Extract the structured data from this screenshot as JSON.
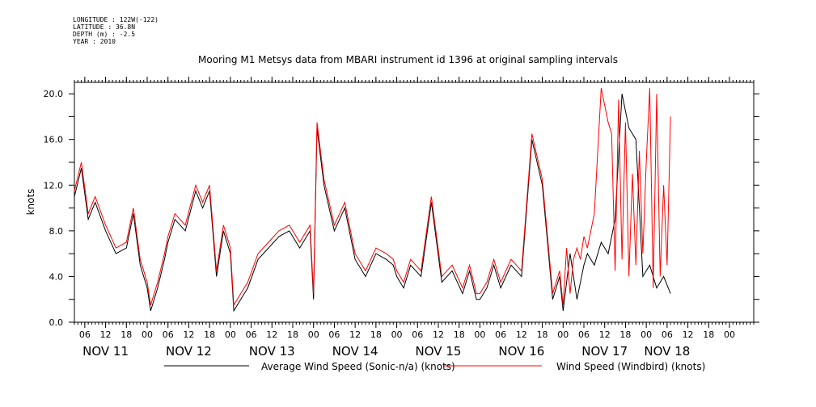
{
  "metadata": {
    "lines": [
      "LONGITUDE : 122W(-122)",
      "LATITUDE : 36.8N",
      "DEPTH (m) : -2.5",
      "YEAR : 2010"
    ]
  },
  "colors": {
    "series1": "#000000",
    "series2": "#ff0000",
    "axis": "#000000"
  },
  "chart_data": {
    "type": "line",
    "title": "Mooring M1 Metsys data from MBARI instrument id 1396 at original sampling intervals",
    "xlabel": "",
    "ylabel": "knots",
    "ylim": [
      0,
      21
    ],
    "xlim": [
      "2010-11-10T03:00",
      "2010-11-18T07:00"
    ],
    "yticks": [
      "0.0",
      "4.0",
      "8.0",
      "12.0",
      "16.0",
      "20.0"
    ],
    "xtick_hours": [
      "06",
      "12",
      "18",
      "00",
      "06",
      "12",
      "18",
      "00",
      "06",
      "12",
      "18",
      "00",
      "06",
      "12",
      "18",
      "00",
      "06",
      "12",
      "18",
      "00",
      "06",
      "12",
      "18",
      "00",
      "06",
      "12",
      "18",
      "00",
      "06",
      "12",
      "18",
      "00"
    ],
    "xtick_start": "2010-11-10T06:00",
    "date_labels": [
      {
        "label": "NOV 11",
        "at": "2010-11-10T12:00"
      },
      {
        "label": "NOV 12",
        "at": "2010-11-11T12:00"
      },
      {
        "label": "NOV 13",
        "at": "2010-11-12T12:00"
      },
      {
        "label": "NOV 14",
        "at": "2010-11-13T12:00"
      },
      {
        "label": "NOV 15",
        "at": "2010-11-14T12:00"
      },
      {
        "label": "NOV 16",
        "at": "2010-11-15T12:00"
      },
      {
        "label": "NOV 17",
        "at": "2010-11-16T12:00"
      },
      {
        "label": "NOV 18",
        "at": "2010-11-17T06:00"
      }
    ],
    "series": [
      {
        "name": "Average Wind Speed (Sonic-n/a) (knots)",
        "x": [
          "2010-11-10T03:00",
          "2010-11-10T05:00",
          "2010-11-10T07:00",
          "2010-11-10T09:00",
          "2010-11-10T12:00",
          "2010-11-10T15:00",
          "2010-11-10T18:00",
          "2010-11-10T20:00",
          "2010-11-10T22:00",
          "2010-11-11T00:00",
          "2010-11-11T01:00",
          "2010-11-11T03:00",
          "2010-11-11T05:00",
          "2010-11-11T06:00",
          "2010-11-11T08:00",
          "2010-11-11T11:00",
          "2010-11-11T14:00",
          "2010-11-11T16:00",
          "2010-11-11T18:00",
          "2010-11-11T20:00",
          "2010-11-11T22:00",
          "2010-11-12T00:00",
          "2010-11-12T01:00",
          "2010-11-12T03:00",
          "2010-11-12T05:00",
          "2010-11-12T08:00",
          "2010-11-12T11:00",
          "2010-11-12T14:00",
          "2010-11-12T17:00",
          "2010-11-12T20:00",
          "2010-11-12T23:00",
          "2010-11-13T00:00",
          "2010-11-13T01:00",
          "2010-11-13T03:00",
          "2010-11-13T06:00",
          "2010-11-13T09:00",
          "2010-11-13T12:00",
          "2010-11-13T15:00",
          "2010-11-13T18:00",
          "2010-11-13T21:00",
          "2010-11-13T23:00",
          "2010-11-14T00:00",
          "2010-11-14T02:00",
          "2010-11-14T04:00",
          "2010-11-14T07:00",
          "2010-11-14T10:00",
          "2010-11-14T13:00",
          "2010-11-14T16:00",
          "2010-11-14T19:00",
          "2010-11-14T21:00",
          "2010-11-14T23:00",
          "2010-11-15T00:00",
          "2010-11-15T02:00",
          "2010-11-15T04:00",
          "2010-11-15T06:00",
          "2010-11-15T09:00",
          "2010-11-15T12:00",
          "2010-11-15T15:00",
          "2010-11-15T18:00",
          "2010-11-15T21:00",
          "2010-11-15T23:00",
          "2010-11-16T00:00",
          "2010-11-16T02:00",
          "2010-11-16T04:00",
          "2010-11-16T06:00",
          "2010-11-16T07:00",
          "2010-11-16T09:00",
          "2010-11-16T11:00",
          "2010-11-16T13:00",
          "2010-11-16T15:00",
          "2010-11-16T17:00",
          "2010-11-16T19:00",
          "2010-11-16T21:00",
          "2010-11-16T23:00",
          "2010-11-17T01:00",
          "2010-11-17T03:00",
          "2010-11-17T05:00",
          "2010-11-17T07:00"
        ],
        "y": [
          11,
          13.5,
          9,
          10.5,
          8,
          6,
          6.5,
          9.5,
          5,
          3,
          1,
          3,
          5.5,
          7,
          9,
          8,
          11.5,
          10,
          11.5,
          4,
          8,
          6,
          1,
          2,
          3,
          5.5,
          6.5,
          7.5,
          8,
          6.5,
          8,
          2,
          17,
          12,
          8,
          10,
          5.5,
          4,
          6,
          5.5,
          5,
          4,
          3,
          5,
          4,
          10.5,
          3.5,
          4.5,
          2.5,
          4.5,
          2,
          2,
          3,
          5,
          3,
          5,
          4,
          16,
          12,
          2,
          4,
          1,
          6,
          2,
          5,
          6,
          5,
          7,
          6,
          9,
          20,
          17,
          16,
          4,
          5,
          3,
          4,
          2.5
        ]
      },
      {
        "name": "Wind Speed (Windbird) (knots)",
        "x": [
          "2010-11-10T03:00",
          "2010-11-10T05:00",
          "2010-11-10T07:00",
          "2010-11-10T09:00",
          "2010-11-10T12:00",
          "2010-11-10T15:00",
          "2010-11-10T18:00",
          "2010-11-10T20:00",
          "2010-11-10T22:00",
          "2010-11-11T00:00",
          "2010-11-11T01:00",
          "2010-11-11T03:00",
          "2010-11-11T05:00",
          "2010-11-11T06:00",
          "2010-11-11T08:00",
          "2010-11-11T11:00",
          "2010-11-11T14:00",
          "2010-11-11T16:00",
          "2010-11-11T18:00",
          "2010-11-11T20:00",
          "2010-11-11T22:00",
          "2010-11-12T00:00",
          "2010-11-12T01:00",
          "2010-11-12T03:00",
          "2010-11-12T05:00",
          "2010-11-12T08:00",
          "2010-11-12T11:00",
          "2010-11-12T14:00",
          "2010-11-12T17:00",
          "2010-11-12T20:00",
          "2010-11-12T23:00",
          "2010-11-13T00:00",
          "2010-11-13T01:00",
          "2010-11-13T03:00",
          "2010-11-13T06:00",
          "2010-11-13T09:00",
          "2010-11-13T12:00",
          "2010-11-13T15:00",
          "2010-11-13T18:00",
          "2010-11-13T21:00",
          "2010-11-13T23:00",
          "2010-11-14T00:00",
          "2010-11-14T02:00",
          "2010-11-14T04:00",
          "2010-11-14T07:00",
          "2010-11-14T10:00",
          "2010-11-14T13:00",
          "2010-11-14T16:00",
          "2010-11-14T19:00",
          "2010-11-14T21:00",
          "2010-11-14T23:00",
          "2010-11-15T00:00",
          "2010-11-15T02:00",
          "2010-11-15T04:00",
          "2010-11-15T06:00",
          "2010-11-15T09:00",
          "2010-11-15T12:00",
          "2010-11-15T15:00",
          "2010-11-15T18:00",
          "2010-11-15T21:00",
          "2010-11-15T23:00",
          "2010-11-16T00:00",
          "2010-11-16T01:00",
          "2010-11-16T02:00",
          "2010-11-16T03:00",
          "2010-11-16T04:00",
          "2010-11-16T05:00",
          "2010-11-16T06:00",
          "2010-11-16T07:00",
          "2010-11-16T09:00",
          "2010-11-16T11:00",
          "2010-11-16T13:00",
          "2010-11-16T14:00",
          "2010-11-16T15:00",
          "2010-11-16T16:00",
          "2010-11-16T17:00",
          "2010-11-16T18:00",
          "2010-11-16T19:00",
          "2010-11-16T20:00",
          "2010-11-16T21:00",
          "2010-11-16T22:00",
          "2010-11-16T23:00",
          "2010-11-17T00:00",
          "2010-11-17T01:00",
          "2010-11-17T02:00",
          "2010-11-17T03:00",
          "2010-11-17T04:00",
          "2010-11-17T05:00",
          "2010-11-17T06:00",
          "2010-11-17T07:00"
        ],
        "y": [
          11.5,
          14,
          9.5,
          11,
          8.5,
          6.5,
          7,
          10,
          5.5,
          3.5,
          1.5,
          3.5,
          6,
          7.5,
          9.5,
          8.5,
          12,
          10.5,
          12,
          4.5,
          8.5,
          6.5,
          1.5,
          2.5,
          3.5,
          6,
          7,
          8,
          8.5,
          7,
          8.5,
          2.5,
          17.5,
          12.5,
          8.5,
          10.5,
          6,
          4.5,
          6.5,
          6,
          5.5,
          4.5,
          3.5,
          5.5,
          4.5,
          11,
          4,
          5,
          3,
          5,
          2.5,
          2.5,
          3.5,
          5.5,
          3.5,
          5.5,
          4.5,
          16.5,
          12.5,
          2.5,
          4.5,
          1.5,
          6.5,
          2.5,
          5.5,
          6.5,
          5.5,
          7.5,
          6.5,
          9.5,
          20.5,
          17.5,
          16.5,
          4.5,
          19.5,
          5.5,
          17.5,
          4,
          13,
          5,
          15,
          6,
          14,
          20.5,
          3,
          20,
          4,
          12,
          5,
          18
        ]
      }
    ]
  }
}
